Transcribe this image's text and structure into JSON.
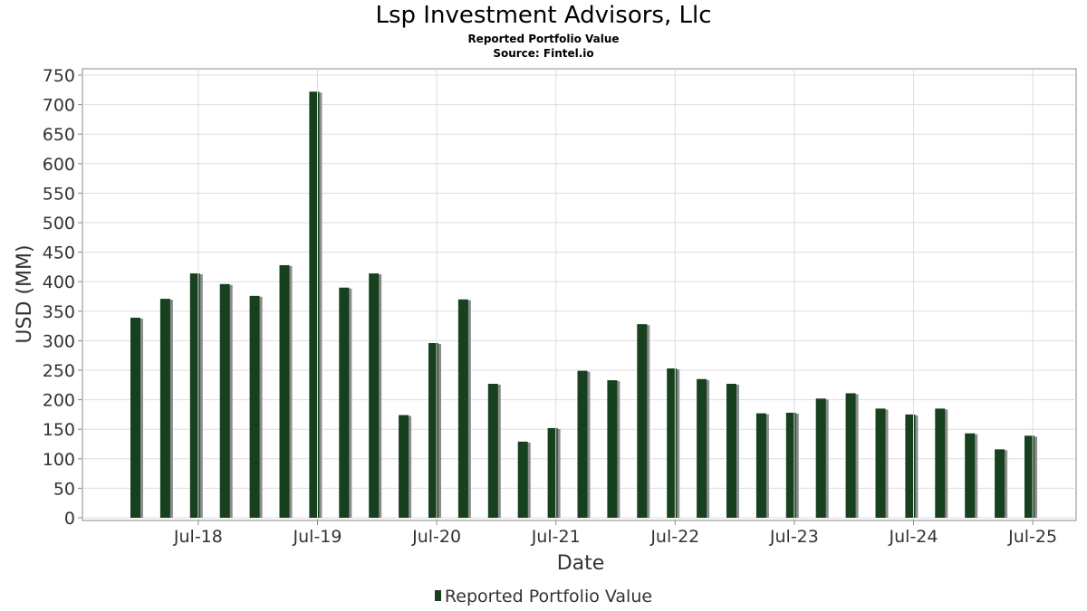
{
  "header": {
    "title": "Lsp Investment Advisors, Llc",
    "subtitle": "Reported Portfolio Value",
    "source": "Source: Fintel.io"
  },
  "legend": {
    "label": "Reported Portfolio Value"
  },
  "colors": {
    "bar": "#17401f",
    "shadow": "#8c8c8c",
    "grid": "#dddddd",
    "axis": "#888888"
  },
  "chart_data": {
    "type": "bar",
    "title": "Lsp Investment Advisors, Llc",
    "subtitle": "Reported Portfolio Value",
    "xlabel": "Date",
    "ylabel": "USD (MM)",
    "ylim": [
      0,
      750
    ],
    "yticks": [
      0,
      50,
      100,
      150,
      200,
      250,
      300,
      350,
      400,
      450,
      500,
      550,
      600,
      650,
      700,
      750
    ],
    "xticks": [
      "Jul-18",
      "Jul-19",
      "Jul-20",
      "Jul-21",
      "Jul-22",
      "Jul-23",
      "Jul-24",
      "Jul-25"
    ],
    "grid": true,
    "legend_position": "bottom",
    "series": [
      {
        "name": "Reported Portfolio Value",
        "values": [
          339,
          371,
          414,
          396,
          376,
          428,
          722,
          390,
          414,
          174,
          296,
          370,
          227,
          129,
          152,
          249,
          233,
          328,
          253,
          235,
          227,
          177,
          178,
          202,
          211,
          185,
          175,
          185,
          143,
          116,
          139
        ]
      }
    ]
  }
}
